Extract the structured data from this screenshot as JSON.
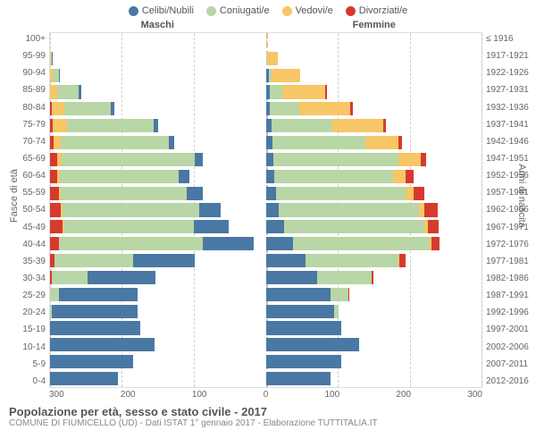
{
  "legend": [
    {
      "label": "Celibi/Nubili",
      "color": "#4a78a4"
    },
    {
      "label": "Coniugati/e",
      "color": "#b9d6a6"
    },
    {
      "label": "Vedovi/e",
      "color": "#f7c666"
    },
    {
      "label": "Divorziati/e",
      "color": "#d63a2e"
    }
  ],
  "side_titles": {
    "male": "Maschi",
    "female": "Femmine"
  },
  "yaxis_left_label": "Fasce di età",
  "yaxis_right_label": "Anni di nascita",
  "age_labels": [
    "100+",
    "95-99",
    "90-94",
    "85-89",
    "80-84",
    "75-79",
    "70-74",
    "65-69",
    "60-64",
    "55-59",
    "50-54",
    "45-49",
    "40-44",
    "35-39",
    "30-34",
    "25-29",
    "20-24",
    "15-19",
    "10-14",
    "5-9",
    "0-4"
  ],
  "birth_labels": [
    "≤ 1916",
    "1917-1921",
    "1922-1926",
    "1927-1931",
    "1932-1936",
    "1937-1941",
    "1942-1946",
    "1947-1951",
    "1952-1956",
    "1957-1961",
    "1962-1966",
    "1967-1971",
    "1972-1976",
    "1977-1981",
    "1982-1986",
    "1987-1991",
    "1992-1996",
    "1997-2001",
    "2002-2006",
    "2007-2011",
    "2012-2016"
  ],
  "x_ticks": [
    300,
    200,
    100,
    0,
    100,
    200,
    300
  ],
  "x_max": 300,
  "colors": {
    "single": "#4a78a4",
    "married": "#b9d6a6",
    "widowed": "#f7c666",
    "divorced": "#d63a2e",
    "grid": "#cccccc",
    "background": "#ffffff"
  },
  "typography": {
    "tick_fontsize": 10,
    "legend_fontsize": 11,
    "title_fontsize": 13
  },
  "data": [
    {
      "age": "100+",
      "m": {
        "single": 0,
        "married": 0,
        "widowed": 0,
        "divorced": 0
      },
      "f": {
        "single": 0,
        "married": 0,
        "widowed": 1,
        "divorced": 0
      }
    },
    {
      "age": "95-99",
      "m": {
        "single": 1,
        "married": 1,
        "widowed": 1,
        "divorced": 0
      },
      "f": {
        "single": 1,
        "married": 1,
        "widowed": 15,
        "divorced": 0
      }
    },
    {
      "age": "90-94",
      "m": {
        "single": 2,
        "married": 8,
        "widowed": 4,
        "divorced": 0
      },
      "f": {
        "single": 4,
        "married": 4,
        "widowed": 40,
        "divorced": 0
      }
    },
    {
      "age": "85-89",
      "m": {
        "single": 3,
        "married": 30,
        "widowed": 10,
        "divorced": 0
      },
      "f": {
        "single": 5,
        "married": 18,
        "widowed": 60,
        "divorced": 2
      }
    },
    {
      "age": "80-84",
      "m": {
        "single": 5,
        "married": 65,
        "widowed": 18,
        "divorced": 2
      },
      "f": {
        "single": 6,
        "married": 40,
        "widowed": 72,
        "divorced": 3
      }
    },
    {
      "age": "75-79",
      "m": {
        "single": 6,
        "married": 120,
        "widowed": 20,
        "divorced": 4
      },
      "f": {
        "single": 8,
        "married": 85,
        "widowed": 70,
        "divorced": 4
      }
    },
    {
      "age": "70-74",
      "m": {
        "single": 8,
        "married": 150,
        "widowed": 10,
        "divorced": 5
      },
      "f": {
        "single": 9,
        "married": 130,
        "widowed": 45,
        "divorced": 6
      }
    },
    {
      "age": "65-69",
      "m": {
        "single": 12,
        "married": 185,
        "widowed": 6,
        "divorced": 10
      },
      "f": {
        "single": 10,
        "married": 175,
        "widowed": 30,
        "divorced": 8
      }
    },
    {
      "age": "60-64",
      "m": {
        "single": 15,
        "married": 165,
        "widowed": 4,
        "divorced": 10
      },
      "f": {
        "single": 12,
        "married": 165,
        "widowed": 18,
        "divorced": 10
      }
    },
    {
      "age": "55-59",
      "m": {
        "single": 22,
        "married": 175,
        "widowed": 3,
        "divorced": 12
      },
      "f": {
        "single": 14,
        "married": 180,
        "widowed": 12,
        "divorced": 14
      }
    },
    {
      "age": "50-54",
      "m": {
        "single": 30,
        "married": 190,
        "widowed": 2,
        "divorced": 15
      },
      "f": {
        "single": 18,
        "married": 195,
        "widowed": 8,
        "divorced": 18
      }
    },
    {
      "age": "45-49",
      "m": {
        "single": 48,
        "married": 180,
        "widowed": 2,
        "divorced": 18
      },
      "f": {
        "single": 25,
        "married": 195,
        "widowed": 5,
        "divorced": 16
      }
    },
    {
      "age": "40-44",
      "m": {
        "single": 70,
        "married": 200,
        "widowed": 1,
        "divorced": 12
      },
      "f": {
        "single": 38,
        "married": 190,
        "widowed": 2,
        "divorced": 12
      }
    },
    {
      "age": "35-39",
      "m": {
        "single": 85,
        "married": 110,
        "widowed": 0,
        "divorced": 6
      },
      "f": {
        "single": 55,
        "married": 130,
        "widowed": 1,
        "divorced": 8
      }
    },
    {
      "age": "30-34",
      "m": {
        "single": 95,
        "married": 50,
        "widowed": 0,
        "divorced": 2
      },
      "f": {
        "single": 72,
        "married": 75,
        "widowed": 0,
        "divorced": 3
      }
    },
    {
      "age": "25-29",
      "m": {
        "single": 110,
        "married": 12,
        "widowed": 0,
        "divorced": 0
      },
      "f": {
        "single": 90,
        "married": 25,
        "widowed": 0,
        "divorced": 1
      }
    },
    {
      "age": "20-24",
      "m": {
        "single": 120,
        "married": 2,
        "widowed": 0,
        "divorced": 0
      },
      "f": {
        "single": 95,
        "married": 6,
        "widowed": 0,
        "divorced": 0
      }
    },
    {
      "age": "15-19",
      "m": {
        "single": 125,
        "married": 0,
        "widowed": 0,
        "divorced": 0
      },
      "f": {
        "single": 105,
        "married": 0,
        "widowed": 0,
        "divorced": 0
      }
    },
    {
      "age": "10-14",
      "m": {
        "single": 145,
        "married": 0,
        "widowed": 0,
        "divorced": 0
      },
      "f": {
        "single": 130,
        "married": 0,
        "widowed": 0,
        "divorced": 0
      }
    },
    {
      "age": "5-9",
      "m": {
        "single": 115,
        "married": 0,
        "widowed": 0,
        "divorced": 0
      },
      "f": {
        "single": 105,
        "married": 0,
        "widowed": 0,
        "divorced": 0
      }
    },
    {
      "age": "0-4",
      "m": {
        "single": 95,
        "married": 0,
        "widowed": 0,
        "divorced": 0
      },
      "f": {
        "single": 90,
        "married": 0,
        "widowed": 0,
        "divorced": 0
      }
    }
  ],
  "footer": {
    "title": "Popolazione per età, sesso e stato civile - 2017",
    "sub": "COMUNE DI FIUMICELLO (UD) - Dati ISTAT 1° gennaio 2017 - Elaborazione TUTTITALIA.IT"
  }
}
